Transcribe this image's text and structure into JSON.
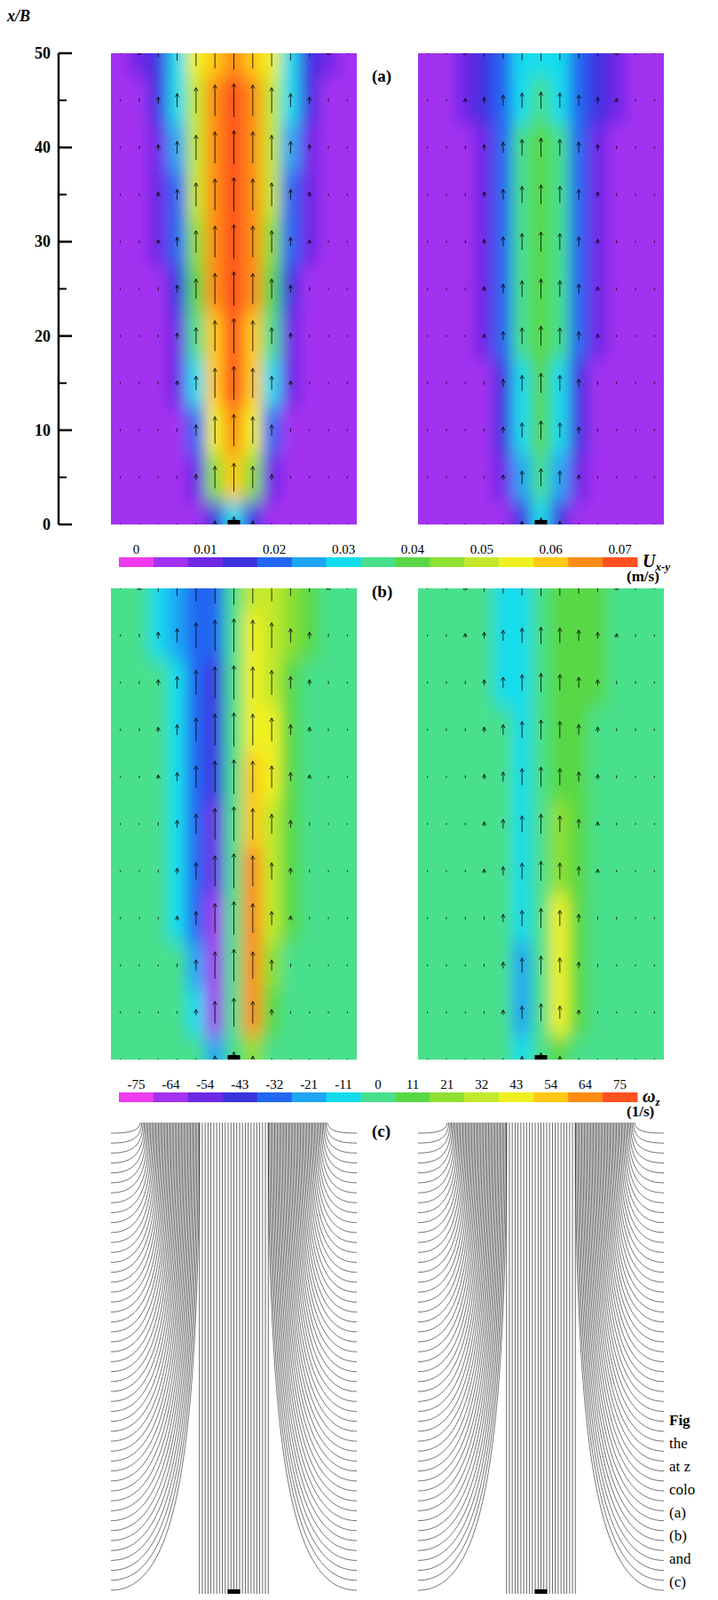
{
  "chart_data": {
    "type": "contour",
    "ylabel": "x/B",
    "ylim": [
      0,
      50
    ],
    "yticks": [
      0,
      10,
      20,
      30,
      40,
      50
    ],
    "minor_yticks": [
      5,
      15,
      25,
      35,
      45
    ],
    "row_x": [
      0,
      5,
      10,
      15,
      20,
      25,
      30,
      35,
      40,
      45,
      50
    ],
    "panels": [
      {
        "label": "(a)",
        "kind": "contour",
        "colorbar": {
          "title": "U",
          "title_sub": "x-y",
          "unit": "(m/s)",
          "range": [
            -0.0025,
            0.0725
          ],
          "ticks": [
            0,
            0.01,
            0.02,
            0.03,
            0.04,
            0.05,
            0.06,
            0.07
          ],
          "colors": [
            "#ee3cee",
            "#a232f0",
            "#6e28e6",
            "#3c32e0",
            "#2266f2",
            "#1ea6f4",
            "#14dcec",
            "#48e08c",
            "#58d844",
            "#8ee032",
            "#c4e82c",
            "#f0f020",
            "#ffc814",
            "#ff8c14",
            "#ff501e"
          ]
        },
        "fields": [
          [
            [
              0.004,
              0.004,
              0.004,
              0.004,
              0.006,
              0.015,
              0.032,
              0.015,
              0.006,
              0.004,
              0.004,
              0.004,
              0.004
            ],
            [
              0.004,
              0.004,
              0.004,
              0.005,
              0.012,
              0.045,
              0.058,
              0.045,
              0.012,
              0.005,
              0.004,
              0.004,
              0.004
            ],
            [
              0.004,
              0.004,
              0.004,
              0.007,
              0.022,
              0.055,
              0.065,
              0.055,
              0.022,
              0.007,
              0.004,
              0.004,
              0.004
            ],
            [
              0.004,
              0.004,
              0.005,
              0.009,
              0.028,
              0.06,
              0.068,
              0.06,
              0.028,
              0.009,
              0.005,
              0.004,
              0.004
            ],
            [
              0.004,
              0.004,
              0.006,
              0.012,
              0.034,
              0.062,
              0.071,
              0.062,
              0.034,
              0.012,
              0.006,
              0.004,
              0.004
            ],
            [
              0.004,
              0.004,
              0.007,
              0.015,
              0.04,
              0.063,
              0.07,
              0.063,
              0.04,
              0.015,
              0.007,
              0.004,
              0.004
            ],
            [
              0.004,
              0.005,
              0.008,
              0.018,
              0.045,
              0.064,
              0.07,
              0.064,
              0.045,
              0.018,
              0.008,
              0.005,
              0.004
            ],
            [
              0.004,
              0.005,
              0.01,
              0.021,
              0.048,
              0.064,
              0.069,
              0.064,
              0.048,
              0.021,
              0.01,
              0.005,
              0.004
            ],
            [
              0.004,
              0.006,
              0.012,
              0.025,
              0.05,
              0.064,
              0.069,
              0.064,
              0.05,
              0.025,
              0.012,
              0.006,
              0.004
            ],
            [
              0.004,
              0.007,
              0.014,
              0.028,
              0.052,
              0.063,
              0.068,
              0.063,
              0.052,
              0.028,
              0.014,
              0.007,
              0.004
            ],
            [
              0.004,
              0.008,
              0.015,
              0.03,
              0.053,
              0.062,
              0.067,
              0.062,
              0.053,
              0.03,
              0.015,
              0.008,
              0.004
            ]
          ],
          [
            [
              0.004,
              0.004,
              0.004,
              0.004,
              0.006,
              0.013,
              0.028,
              0.013,
              0.006,
              0.004,
              0.004,
              0.004,
              0.004
            ],
            [
              0.004,
              0.004,
              0.004,
              0.005,
              0.01,
              0.026,
              0.036,
              0.026,
              0.01,
              0.005,
              0.004,
              0.004,
              0.004
            ],
            [
              0.004,
              0.004,
              0.004,
              0.006,
              0.013,
              0.03,
              0.038,
              0.03,
              0.013,
              0.006,
              0.004,
              0.004,
              0.004
            ],
            [
              0.004,
              0.004,
              0.005,
              0.007,
              0.016,
              0.032,
              0.04,
              0.032,
              0.016,
              0.007,
              0.005,
              0.004,
              0.004
            ],
            [
              0.004,
              0.004,
              0.005,
              0.008,
              0.018,
              0.033,
              0.04,
              0.033,
              0.018,
              0.008,
              0.005,
              0.004,
              0.004
            ],
            [
              0.004,
              0.004,
              0.005,
              0.009,
              0.019,
              0.033,
              0.04,
              0.033,
              0.019,
              0.009,
              0.005,
              0.004,
              0.004
            ],
            [
              0.004,
              0.004,
              0.006,
              0.01,
              0.02,
              0.034,
              0.04,
              0.034,
              0.02,
              0.01,
              0.006,
              0.004,
              0.004
            ],
            [
              0.004,
              0.005,
              0.006,
              0.011,
              0.021,
              0.034,
              0.04,
              0.034,
              0.021,
              0.011,
              0.006,
              0.005,
              0.004
            ],
            [
              0.004,
              0.005,
              0.007,
              0.012,
              0.022,
              0.033,
              0.038,
              0.033,
              0.022,
              0.012,
              0.007,
              0.005,
              0.004
            ],
            [
              0.004,
              0.005,
              0.008,
              0.013,
              0.022,
              0.03,
              0.034,
              0.03,
              0.022,
              0.013,
              0.008,
              0.005,
              0.004
            ],
            [
              0.004,
              0.006,
              0.009,
              0.014,
              0.022,
              0.029,
              0.032,
              0.029,
              0.022,
              0.014,
              0.009,
              0.006,
              0.004
            ]
          ]
        ]
      },
      {
        "label": "(b)",
        "kind": "contour",
        "colorbar": {
          "title": "ω",
          "title_sub": "z",
          "unit": "(1/s)",
          "range": [
            -80.36,
            80.36
          ],
          "ticks": [
            {
              "value": -75,
              "label": "-75"
            },
            {
              "value": -64.29,
              "label": "-64"
            },
            {
              "value": -53.57,
              "label": "-54"
            },
            {
              "value": -42.86,
              "label": "-43"
            },
            {
              "value": -32.14,
              "label": "-32"
            },
            {
              "value": -21.43,
              "label": "-21"
            },
            {
              "value": -10.71,
              "label": "-11"
            },
            {
              "value": 0,
              "label": "0"
            },
            {
              "value": 10.71,
              "label": "11"
            },
            {
              "value": 21.43,
              "label": "21"
            },
            {
              "value": 32.14,
              "label": "32"
            },
            {
              "value": 42.86,
              "label": "43"
            },
            {
              "value": 53.57,
              "label": "54"
            },
            {
              "value": 64.29,
              "label": "64"
            },
            {
              "value": 75,
              "label": "75"
            }
          ],
          "colors": [
            "#ee3cee",
            "#a232f0",
            "#6e28e6",
            "#3c32e0",
            "#2266f2",
            "#1ea6f4",
            "#14dcec",
            "#48e08c",
            "#58d844",
            "#8ee032",
            "#c4e82c",
            "#f0f020",
            "#ffc814",
            "#ff8c14",
            "#ff501e"
          ]
        },
        "fields": [
          [
            [
              0,
              0,
              0,
              0,
              -5,
              -20,
              0,
              20,
              5,
              0,
              0,
              0,
              0
            ],
            [
              0,
              0,
              0,
              -3,
              -15,
              -60,
              0,
              62,
              15,
              3,
              0,
              0,
              0
            ],
            [
              0,
              0,
              0,
              -5,
              -25,
              -66,
              0,
              68,
              25,
              5,
              0,
              0,
              0
            ],
            [
              0,
              0,
              0,
              -6,
              -28,
              -62,
              0,
              66,
              30,
              6,
              0,
              0,
              0
            ],
            [
              0,
              0,
              -2,
              -8,
              -32,
              -55,
              0,
              60,
              34,
              8,
              2,
              0,
              0
            ],
            [
              0,
              0,
              -3,
              -10,
              -35,
              -50,
              -2,
              55,
              36,
              10,
              3,
              0,
              0
            ],
            [
              0,
              0,
              -3,
              -12,
              -36,
              -45,
              -2,
              50,
              38,
              12,
              3,
              0,
              0
            ],
            [
              0,
              0,
              -4,
              -14,
              -35,
              -42,
              0,
              46,
              38,
              14,
              4,
              0,
              0
            ],
            [
              0,
              0,
              -5,
              -16,
              -34,
              -40,
              0,
              44,
              36,
              16,
              5,
              0,
              0
            ],
            [
              0,
              -2,
              -6,
              -18,
              -33,
              -36,
              0,
              40,
              34,
              18,
              6,
              2,
              0
            ],
            [
              0,
              -2,
              -7,
              -20,
              -32,
              -30,
              0,
              35,
              32,
              20,
              7,
              2,
              0
            ]
          ],
          [
            [
              0,
              0,
              0,
              0,
              0,
              -8,
              0,
              10,
              0,
              0,
              0,
              0,
              0
            ],
            [
              0,
              0,
              0,
              0,
              -5,
              -18,
              0,
              40,
              8,
              0,
              0,
              0,
              0
            ],
            [
              0,
              0,
              0,
              0,
              -5,
              -18,
              0,
              48,
              10,
              0,
              0,
              0,
              0
            ],
            [
              0,
              0,
              0,
              0,
              -5,
              -15,
              0,
              40,
              10,
              0,
              0,
              0,
              0
            ],
            [
              0,
              0,
              0,
              0,
              -4,
              -12,
              0,
              25,
              8,
              0,
              0,
              0,
              0
            ],
            [
              0,
              0,
              0,
              0,
              -4,
              -12,
              0,
              18,
              8,
              0,
              0,
              0,
              0
            ],
            [
              0,
              0,
              0,
              -2,
              -5,
              -12,
              0,
              15,
              8,
              3,
              0,
              0,
              0
            ],
            [
              0,
              0,
              0,
              -2,
              -5,
              -12,
              0,
              14,
              10,
              5,
              0,
              0,
              0
            ],
            [
              0,
              0,
              0,
              -2,
              -6,
              -12,
              0,
              14,
              12,
              6,
              0,
              0,
              0
            ],
            [
              0,
              0,
              0,
              -3,
              -6,
              -11,
              0,
              12,
              12,
              6,
              0,
              0,
              0
            ],
            [
              0,
              0,
              0,
              -3,
              -6,
              -10,
              0,
              10,
              10,
              6,
              0,
              0,
              0
            ]
          ]
        ]
      },
      {
        "label": "(c)",
        "kind": "streamlines"
      }
    ],
    "caption_fragments": [
      "Fig",
      "the",
      "at z",
      "colo",
      "(a)",
      "(b)",
      "and",
      "(c)"
    ]
  }
}
